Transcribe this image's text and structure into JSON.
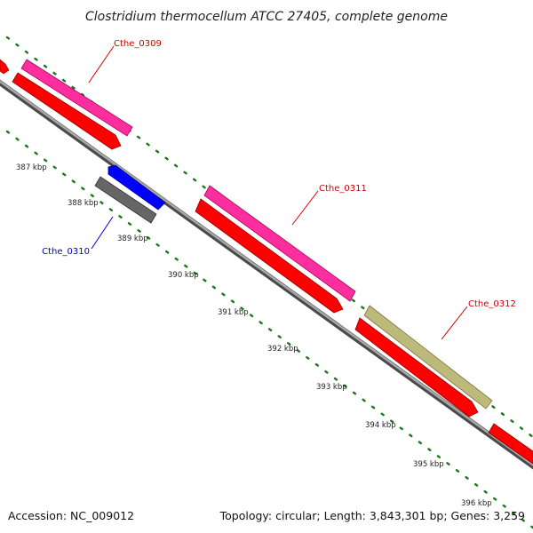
{
  "title": "Clostridium thermocellum ATCC 27405, complete genome",
  "accession": "Accession: NC_009012",
  "summary": "Topology: circular; Length: 3,843,301 bp; Genes: 3,259",
  "ticks": [
    "387 kbp",
    "388 kbp",
    "389 kbp",
    "390 kbp",
    "391 kbp",
    "392 kbp",
    "393 kbp",
    "394 kbp",
    "395 kbp",
    "396 kbp"
  ],
  "genes": [
    {
      "name": "Cthe_0309",
      "color": "#cc0000"
    },
    {
      "name": "Cthe_0310",
      "color": "#0000cc"
    },
    {
      "name": "Cthe_0311",
      "color": "#cc0000"
    },
    {
      "name": "Cthe_0312",
      "color": "#cc0000"
    }
  ],
  "colors": {
    "backbone": "#8c8c8c",
    "cds_red": "#ff0000",
    "feature_pink": "#ff2e9e",
    "feature_blue": "#0000ff",
    "feature_gray": "#666666",
    "feature_olive": "#bdb97a",
    "dots": "#1a7a1a"
  }
}
